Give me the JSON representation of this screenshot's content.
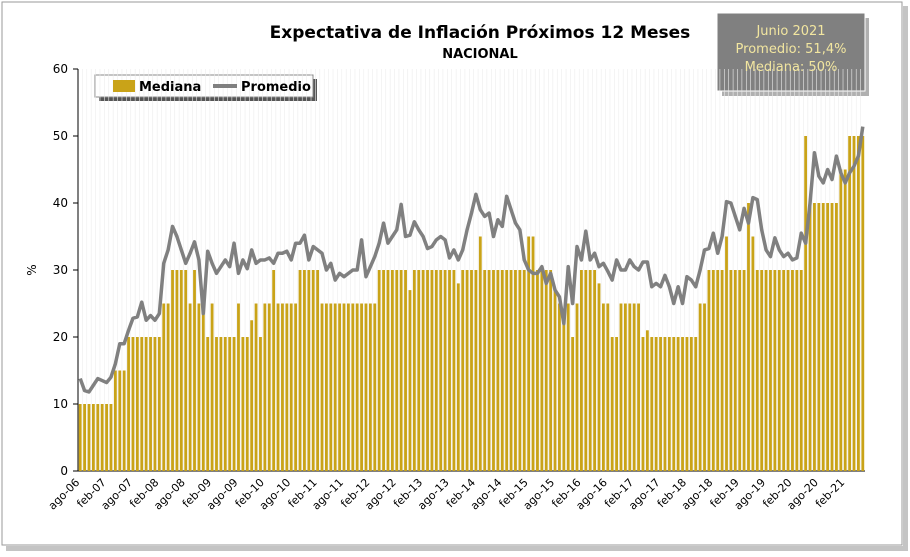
{
  "chart_data": {
    "type": "bar_line",
    "title": "Expectativa de Inflación Próximos 12 Meses",
    "subtitle": "NACIONAL",
    "y_label": "%",
    "info_box": [
      "Junio 2021",
      "Promedio: 51,4%",
      "Mediana: 50%"
    ],
    "ylim": [
      0,
      60
    ],
    "yticks": [
      0,
      10,
      20,
      30,
      40,
      50,
      60
    ],
    "grid": false,
    "legend": "top-left",
    "categories": [
      "ago-06",
      null,
      null,
      null,
      null,
      null,
      "feb-07",
      null,
      null,
      null,
      null,
      null,
      "ago-07",
      null,
      null,
      null,
      null,
      null,
      "feb-08",
      null,
      null,
      null,
      null,
      null,
      "ago-08",
      null,
      null,
      null,
      null,
      null,
      "feb-09",
      null,
      null,
      null,
      null,
      null,
      "ago-09",
      null,
      null,
      null,
      null,
      null,
      "feb-10",
      null,
      null,
      null,
      null,
      null,
      "ago-10",
      null,
      null,
      null,
      null,
      null,
      "feb-11",
      null,
      null,
      null,
      null,
      null,
      "ago-11",
      null,
      null,
      null,
      null,
      null,
      "feb-12",
      null,
      null,
      null,
      null,
      null,
      "ago-12",
      null,
      null,
      null,
      null,
      null,
      "feb-13",
      null,
      null,
      null,
      null,
      null,
      "ago-13",
      null,
      null,
      null,
      null,
      null,
      "feb-14",
      null,
      null,
      null,
      null,
      null,
      "ago-14",
      null,
      null,
      null,
      null,
      null,
      "feb-15",
      null,
      null,
      null,
      null,
      null,
      "ago-15",
      null,
      null,
      null,
      null,
      null,
      "feb-16",
      null,
      null,
      null,
      null,
      null,
      "ago-16",
      null,
      null,
      null,
      null,
      null,
      "feb-17",
      null,
      null,
      null,
      null,
      null,
      "ago-17",
      null,
      null,
      null,
      null,
      null,
      "feb-18",
      null,
      null,
      null,
      null,
      null,
      "ago-18",
      null,
      null,
      null,
      null,
      null,
      "feb-19",
      null,
      null,
      null,
      null,
      null,
      "ago-19",
      null,
      null,
      null,
      null,
      null,
      "feb-20",
      null,
      null,
      null,
      null,
      null,
      "ago-20",
      null,
      null,
      null,
      null,
      null,
      "feb-21",
      null,
      null,
      null,
      null
    ],
    "series": [
      {
        "name": "Mediana",
        "kind": "bar",
        "color": "#c9a318",
        "values": [
          10,
          10,
          10,
          10,
          10,
          10,
          10,
          10,
          15,
          15,
          15,
          20,
          20,
          20,
          20,
          20,
          20,
          20,
          20,
          25,
          25,
          30,
          30,
          30,
          30,
          25,
          30,
          25,
          25,
          20,
          25,
          20,
          20,
          20,
          20,
          20,
          25,
          20,
          20,
          22.5,
          25,
          20,
          25,
          25,
          30,
          25,
          25,
          25,
          25,
          25,
          30,
          30,
          30,
          30,
          30,
          25,
          25,
          25,
          25,
          25,
          25,
          25,
          25,
          25,
          25,
          25,
          25,
          25,
          30,
          30,
          30,
          30,
          30,
          30,
          30,
          27,
          30,
          30,
          30,
          30,
          30,
          30,
          30,
          30,
          30,
          30,
          28,
          30,
          30,
          30,
          30,
          35,
          30,
          30,
          30,
          30,
          30,
          30,
          30,
          30,
          30,
          30,
          35,
          35,
          30,
          30,
          30,
          30,
          27,
          25,
          22.5,
          25,
          20,
          25,
          30,
          30,
          30,
          30,
          28,
          25,
          25,
          20,
          20,
          25,
          25,
          25,
          25,
          25,
          20,
          21,
          20,
          20,
          20,
          20,
          20,
          20,
          20,
          20,
          20,
          20,
          20,
          25,
          25,
          30,
          30,
          30,
          30,
          35,
          30,
          30,
          30,
          30,
          40,
          35,
          30,
          30,
          30,
          30,
          30,
          30,
          30,
          30,
          30,
          30,
          30,
          50,
          40,
          40,
          40,
          40,
          40,
          40,
          40,
          45,
          45,
          50,
          50,
          50,
          50
        ]
      },
      {
        "name": "Promedio",
        "kind": "line",
        "color": "#808080",
        "values": [
          13.8,
          12,
          11.8,
          12.8,
          13.8,
          13.5,
          13.2,
          14,
          16,
          19,
          19,
          21,
          22.8,
          23,
          25.2,
          22.5,
          23.2,
          22.5,
          23.5,
          31,
          33,
          36.5,
          35,
          33,
          31,
          32.5,
          34.2,
          31.5,
          23.5,
          32.8,
          31,
          29.5,
          30.5,
          31.5,
          30.5,
          34,
          29.5,
          31.5,
          30.2,
          33,
          31,
          31.5,
          31.5,
          31.8,
          31,
          32.5,
          32.5,
          32.8,
          31.5,
          34,
          34,
          35.2,
          31.5,
          33.5,
          33,
          32.5,
          30,
          31,
          28.5,
          29.5,
          29,
          29.5,
          30,
          30,
          34.5,
          29,
          30.5,
          32,
          34,
          37,
          34,
          35,
          36,
          39.8,
          35,
          35.2,
          37.2,
          36,
          35,
          33.2,
          33.5,
          34.5,
          35,
          34.5,
          31.8,
          33,
          31.5,
          33,
          36,
          38.5,
          41.3,
          39,
          38,
          38.5,
          35,
          37.5,
          36.5,
          41,
          39,
          37,
          36,
          31.5,
          30,
          29.5,
          29.5,
          30.5,
          28,
          29.5,
          27,
          26,
          22,
          30.5,
          25,
          33.5,
          31.5,
          35.8,
          31.5,
          32.5,
          30.5,
          31,
          29.8,
          28.5,
          31.5,
          30,
          30,
          31.5,
          30.5,
          30,
          31.2,
          31.2,
          27.5,
          28,
          27.5,
          29.2,
          27.5,
          25,
          27.5,
          25,
          29,
          28.5,
          27.5,
          30,
          33,
          33.2,
          35.5,
          32.5,
          35,
          40.2,
          40,
          38,
          36,
          39.2,
          37,
          40.8,
          40.5,
          36,
          33,
          32,
          34.8,
          33,
          32,
          32.5,
          31.5,
          31.8,
          35.5,
          34,
          40,
          47.5,
          44,
          43,
          45,
          43.5,
          47,
          44.5,
          43,
          44.5,
          45.5,
          47,
          51.4
        ]
      }
    ]
  }
}
